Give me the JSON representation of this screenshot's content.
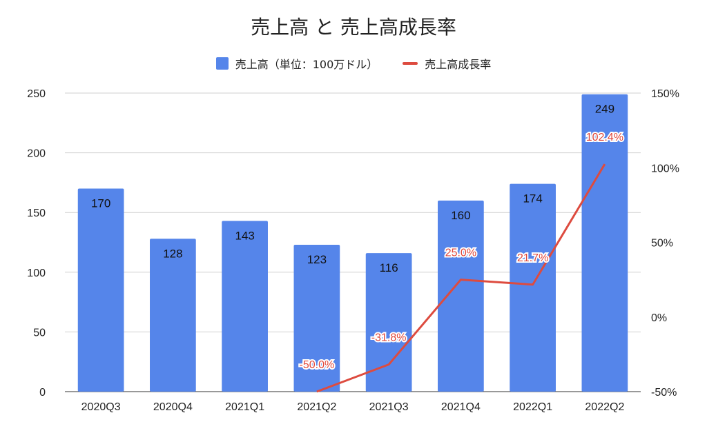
{
  "chart_data": {
    "type": "bar",
    "title": "売上高 と 売上高成長率",
    "categories": [
      "2020Q3",
      "2020Q4",
      "2021Q1",
      "2021Q2",
      "2021Q3",
      "2021Q4",
      "2022Q1",
      "2022Q2"
    ],
    "series": [
      {
        "name": "売上高（単位：100万ドル）",
        "type": "bar",
        "axis": "left",
        "color": "#5585ea",
        "values": [
          170,
          128,
          143,
          123,
          116,
          160,
          174,
          249
        ],
        "labels": [
          "170",
          "128",
          "143",
          "123",
          "116",
          "160",
          "174",
          "249"
        ]
      },
      {
        "name": "売上高成長率",
        "type": "line",
        "axis": "right",
        "color": "#dd4b3f",
        "values": [
          null,
          null,
          null,
          -50.0,
          -31.8,
          25.0,
          21.7,
          102.4
        ],
        "labels": [
          "",
          "",
          "",
          "-50.0%",
          "-31.8%",
          "25.0%",
          "21.7%",
          "102.4%"
        ]
      }
    ],
    "y_left": {
      "min": 0,
      "max": 250,
      "ticks": [
        "0",
        "50",
        "100",
        "150",
        "200",
        "250"
      ]
    },
    "y_right": {
      "min": -50,
      "max": 150,
      "ticks": [
        "-50%",
        "0%",
        "50%",
        "100%",
        "150%"
      ]
    },
    "grid": true,
    "legend_position": "top"
  }
}
